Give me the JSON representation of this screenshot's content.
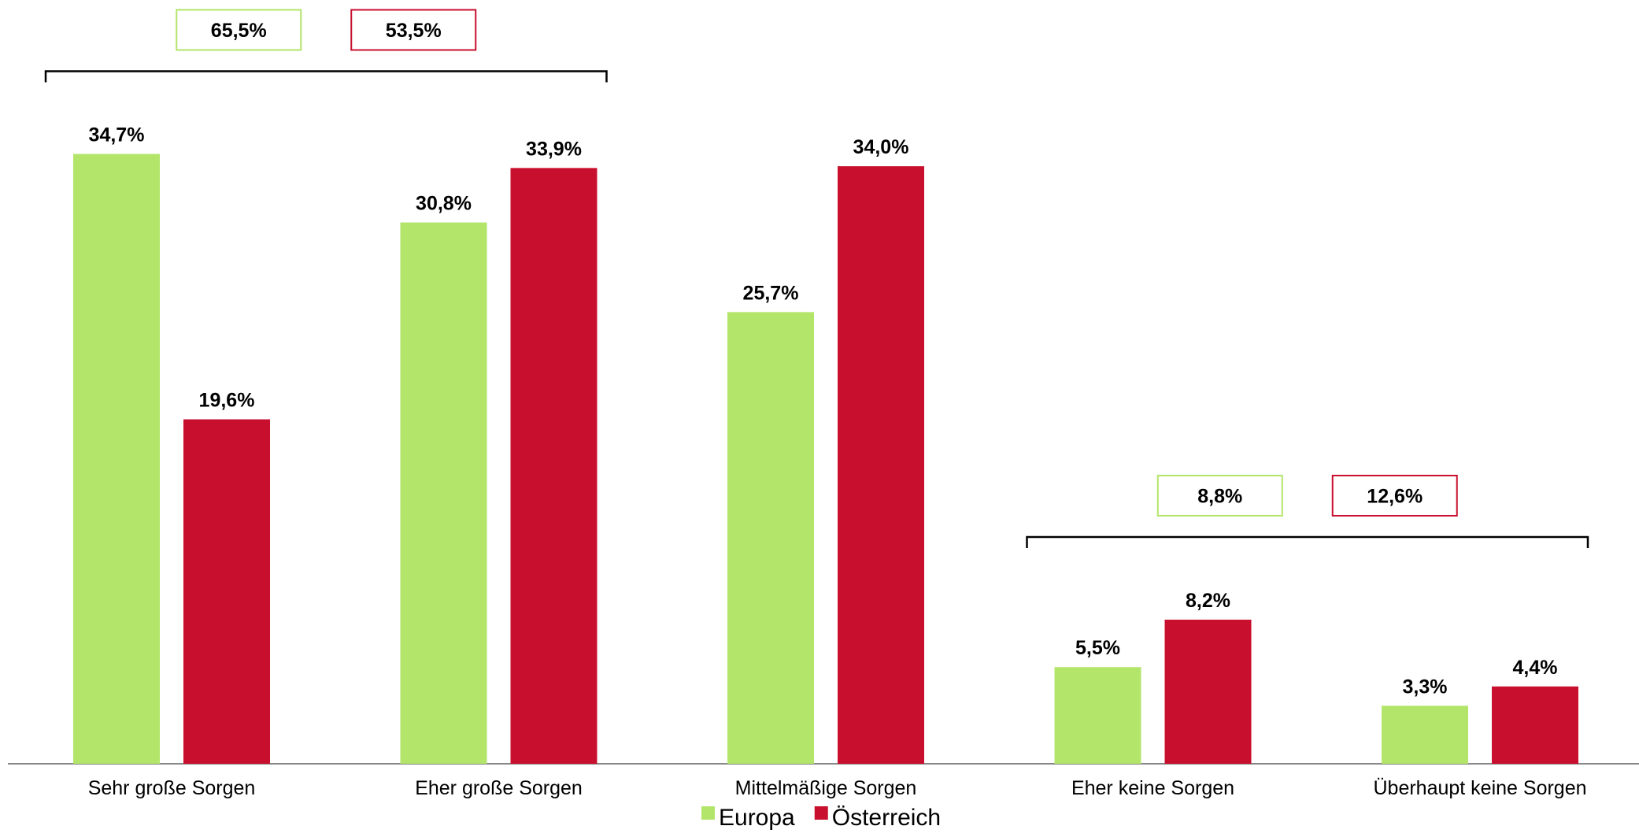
{
  "chart_data": {
    "type": "bar",
    "categories": [
      "Sehr große Sorgen",
      "Eher große Sorgen",
      "Mittelmäßige Sorgen",
      "Eher keine Sorgen",
      "Überhaupt keine Sorgen"
    ],
    "series": [
      {
        "name": "Europa",
        "color": "#b3e56a",
        "values": [
          34.7,
          30.8,
          25.7,
          5.5,
          3.3
        ],
        "labels": [
          "34,7%",
          "30,8%",
          "25,7%",
          "5,5%",
          "3,3%"
        ]
      },
      {
        "name": "Österreich",
        "color": "#c8102e",
        "values": [
          19.6,
          33.9,
          34.0,
          8.2,
          4.4
        ],
        "labels": [
          "19,6%",
          "33,9%",
          "34,0%",
          "8,2%",
          "4,4%"
        ]
      }
    ],
    "ylim": [
      0,
      40
    ],
    "grid": false,
    "legend": "bottom-center",
    "groups": [
      {
        "categories": [
          "Sehr große Sorgen",
          "Eher große Sorgen"
        ],
        "totals": [
          65.5,
          53.5
        ],
        "labels": [
          "65,5%",
          "53,5%"
        ]
      },
      {
        "categories": [
          "Eher keine Sorgen",
          "Überhaupt keine Sorgen"
        ],
        "totals": [
          8.8,
          12.6
        ],
        "labels": [
          "8,8%",
          "12,6%"
        ]
      }
    ]
  }
}
